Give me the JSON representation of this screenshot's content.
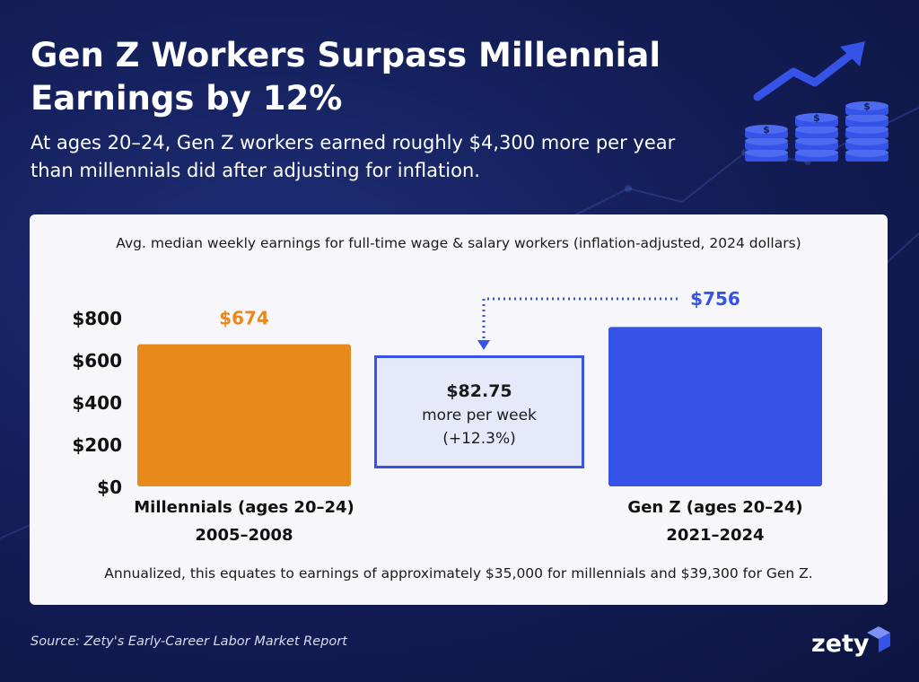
{
  "header": {
    "title": "Gen Z Workers Surpass Millennial Earnings by 12%",
    "subtitle": "At ages 20–24, Gen Z workers earned roughly $4,300 more per year than millennials did after adjusting for inflation."
  },
  "hero_icon": {
    "name": "money-growth-icon",
    "coin_symbol": "$"
  },
  "card": {
    "description": "Avg. median weekly earnings for full-time wage & salary workers (inflation-adjusted, 2024 dollars)",
    "footnote": "Annualized, this equates to earnings of approximately $35,000 for millennials and $39,300 for Gen Z.",
    "callout": {
      "amount": "$82.75",
      "line1": "more per week",
      "line2": "(+12.3%)"
    }
  },
  "chart_data": {
    "type": "bar",
    "categories": [
      {
        "line1": "Millennials (ages 20–24)",
        "line2": "2005–2008"
      },
      {
        "line1": "Gen Z (ages 20–24)",
        "line2": "2021–2024"
      }
    ],
    "values": [
      674,
      756
    ],
    "value_labels": [
      "$674",
      "$756"
    ],
    "colors": [
      "#e8891b",
      "#3553e6"
    ],
    "ylim": [
      0,
      800
    ],
    "yticks": [
      0,
      200,
      400,
      600,
      800
    ],
    "ytick_labels": [
      "$0",
      "$200",
      "$400",
      "$600",
      "$800"
    ],
    "grid": false,
    "legend": "none"
  },
  "source": "Source: Zety's Early-Career Labor Market Report",
  "logo": {
    "text": "zety"
  },
  "colors": {
    "background": "#141f5a",
    "accent_blue": "#3553e6",
    "accent_orange": "#e8891b",
    "card": "#f7f7fb"
  }
}
